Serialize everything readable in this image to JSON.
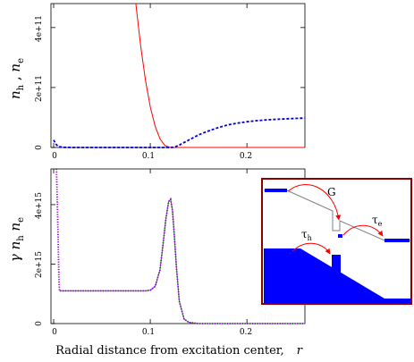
{
  "chart_data": [
    {
      "type": "line",
      "panel": "top",
      "ylabel": {
        "a": "n",
        "a_sub": "h",
        "sep": " , ",
        "b": "n",
        "b_sub": "e"
      },
      "xlim": [
        0,
        0.26
      ],
      "ylim": [
        0,
        480000000000
      ],
      "xticks": [
        0,
        0.1,
        0.2
      ],
      "xtick_labels": [
        "0",
        "0.1",
        "0.2"
      ],
      "yticks": [
        0,
        200000000000,
        400000000000
      ],
      "ytick_labels": [
        "0",
        "2e+11",
        "4e+11"
      ],
      "series": [
        {
          "key": "n_h",
          "style": "solid",
          "color": "#ff0000",
          "x": [
            0.085,
            0.09,
            0.095,
            0.1,
            0.105,
            0.11,
            0.115,
            0.12,
            0.125,
            0.13,
            0.15,
            0.2,
            0.26
          ],
          "y": [
            480000000000,
            339000000000,
            224000000000,
            135000000000,
            71000000000,
            29000000000,
            7000000000,
            1000000000,
            0,
            0,
            0,
            0,
            0
          ]
        },
        {
          "key": "n_e",
          "style": "dashed",
          "color": "#0000cc",
          "x": [
            0,
            0.002,
            0.005,
            0.01,
            0.02,
            0.05,
            0.08,
            0.1,
            0.11,
            0.12,
            0.125,
            0.13,
            0.14,
            0.15,
            0.16,
            0.17,
            0.18,
            0.19,
            0.2,
            0.21,
            0.22,
            0.23,
            0.24,
            0.25,
            0.26
          ],
          "y": [
            25000000000,
            12000000000,
            3000000000,
            500000000,
            0,
            0,
            0,
            0,
            0,
            0,
            1000000000,
            8000000000,
            25000000000,
            42000000000,
            55000000000,
            66000000000,
            75000000000,
            81000000000,
            86000000000,
            89500000000,
            92000000000,
            94000000000,
            95500000000,
            96800000000,
            98000000000
          ]
        }
      ]
    },
    {
      "type": "line",
      "panel": "bottom",
      "ylabel": {
        "a": "γ n",
        "a_sub": "h",
        "sep": " ",
        "b": "n",
        "b_sub": "e"
      },
      "xlabel": {
        "text": "Radial distance from excitation center,",
        "var": "r"
      },
      "xlim": [
        0,
        0.26
      ],
      "ylim": [
        0,
        5200000000000000
      ],
      "xticks": [
        0,
        0.1,
        0.2
      ],
      "xtick_labels": [
        "0",
        "0.1",
        "0.2"
      ],
      "yticks": [
        0,
        2000000000000000,
        4000000000000000
      ],
      "ytick_labels": [
        "0",
        "2e+15",
        "4e+15"
      ],
      "series": [
        {
          "key": "gamma_nh_ne",
          "style": "solid",
          "color": "#2e8b2e",
          "x": [
            0.006,
            0.02,
            0.05,
            0.08,
            0.095,
            0.1,
            0.105,
            0.11,
            0.113,
            0.116,
            0.119,
            0.121,
            0.123,
            0.125,
            0.127,
            0.13,
            0.135,
            0.14,
            0.15,
            0.2,
            0.26
          ],
          "y": [
            1100000000000000,
            1100000000000000,
            1100000000000000,
            1100000000000000,
            1100000000000000,
            1120000000000000,
            1250000000000000,
            1800000000000000,
            2600000000000000,
            3500000000000000,
            4100000000000000,
            4180000000000000,
            3800000000000000,
            2900000000000000,
            1900000000000000,
            750000000000000,
            150000000000000,
            40000000000000,
            0,
            0,
            0
          ]
        },
        {
          "key": "gamma_nh_ne_dotted",
          "style": "dotted",
          "color": "#9400d3",
          "x": [
            0.003,
            0.0045,
            0.0055,
            0.006,
            0.02,
            0.05,
            0.08,
            0.095,
            0.1,
            0.105,
            0.11,
            0.113,
            0.116,
            0.119,
            0.121,
            0.123,
            0.125,
            0.127,
            0.13,
            0.135,
            0.14,
            0.15,
            0.2,
            0.26
          ],
          "y": [
            5200000000000000,
            3000000000000000,
            1500000000000000,
            1100000000000000,
            1100000000000000,
            1100000000000000,
            1100000000000000,
            1100000000000000,
            1120000000000000,
            1250000000000000,
            1800000000000000,
            2600000000000000,
            3500000000000000,
            4100000000000000,
            4180000000000000,
            3800000000000000,
            2900000000000000,
            1900000000000000,
            750000000000000,
            150000000000000,
            40000000000000,
            0,
            0,
            0
          ]
        }
      ]
    }
  ],
  "inset": {
    "labels": {
      "g": "G",
      "tau": "τ",
      "tau_e_sub": "e",
      "tau_h_sub": "h"
    },
    "colors": {
      "frame": "#8b0000",
      "fill": "#0000ff",
      "arrow": "#ff0000",
      "line": "#808080"
    }
  }
}
